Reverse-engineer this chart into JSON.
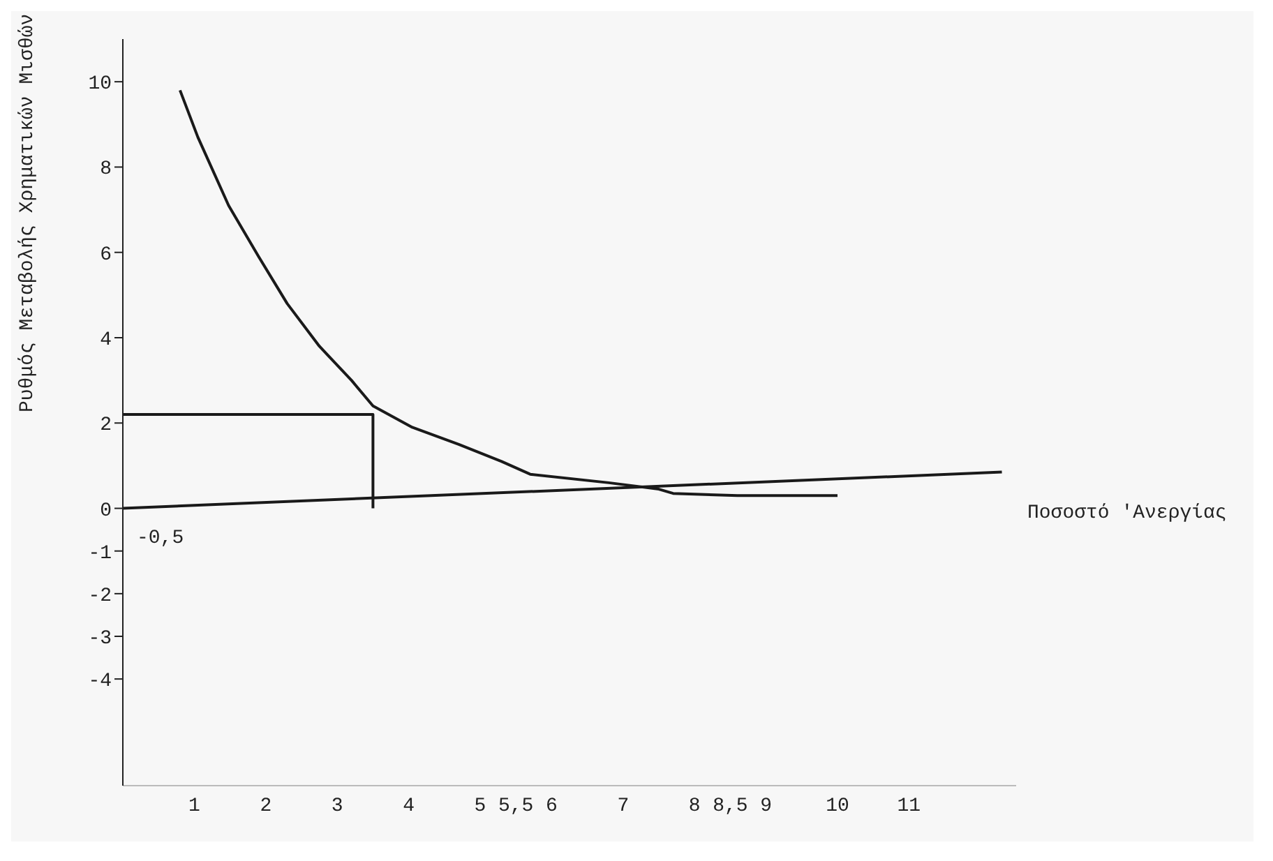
{
  "chart_data": {
    "type": "line",
    "xlabel": "Ποσοστό 'Ανεργίας",
    "ylabel": "Ρυθμός Μεταβολής Χρηματικών Μισθών",
    "xlim": [
      0,
      12.5
    ],
    "ylim": [
      -6.5,
      11
    ],
    "xticks": [
      1,
      2,
      3,
      4,
      5,
      {
        "value": 5.5,
        "label": "5,5"
      },
      6,
      7,
      8,
      {
        "value": 8.5,
        "label": "8,5"
      },
      9,
      10,
      11
    ],
    "yticks": [
      10,
      8,
      6,
      4,
      2,
      0,
      -1,
      -2,
      -3,
      -4
    ],
    "tick_labels": true,
    "legend": false,
    "marker": "none",
    "line_style": "solid",
    "series": [
      {
        "color": "#1a1a1a",
        "x": [
          0.8,
          1.05,
          1.48,
          1.9,
          2.3,
          2.75,
          3.2,
          3.5,
          4.05,
          4.7,
          5.3,
          5.7,
          6.8,
          7.5,
          7.7,
          8.6,
          9,
          10
        ],
        "values": [
          9.8,
          8.7,
          7.1,
          5.9,
          4.8,
          3.8,
          3.0,
          2.4,
          1.9,
          1.5,
          1.1,
          0.8,
          0.6,
          0.45,
          0.35,
          0.3,
          0.3,
          0.3
        ]
      },
      {
        "color": "#1a1a1a",
        "x": [
          0,
          12.3
        ],
        "values": [
          0,
          0.85
        ]
      },
      {
        "color": "#1a1a1a",
        "x": [
          0,
          3.5,
          3.5
        ],
        "values": [
          2.2,
          2.2,
          0
        ]
      }
    ],
    "annotations": [
      "-0,5"
    ]
  }
}
